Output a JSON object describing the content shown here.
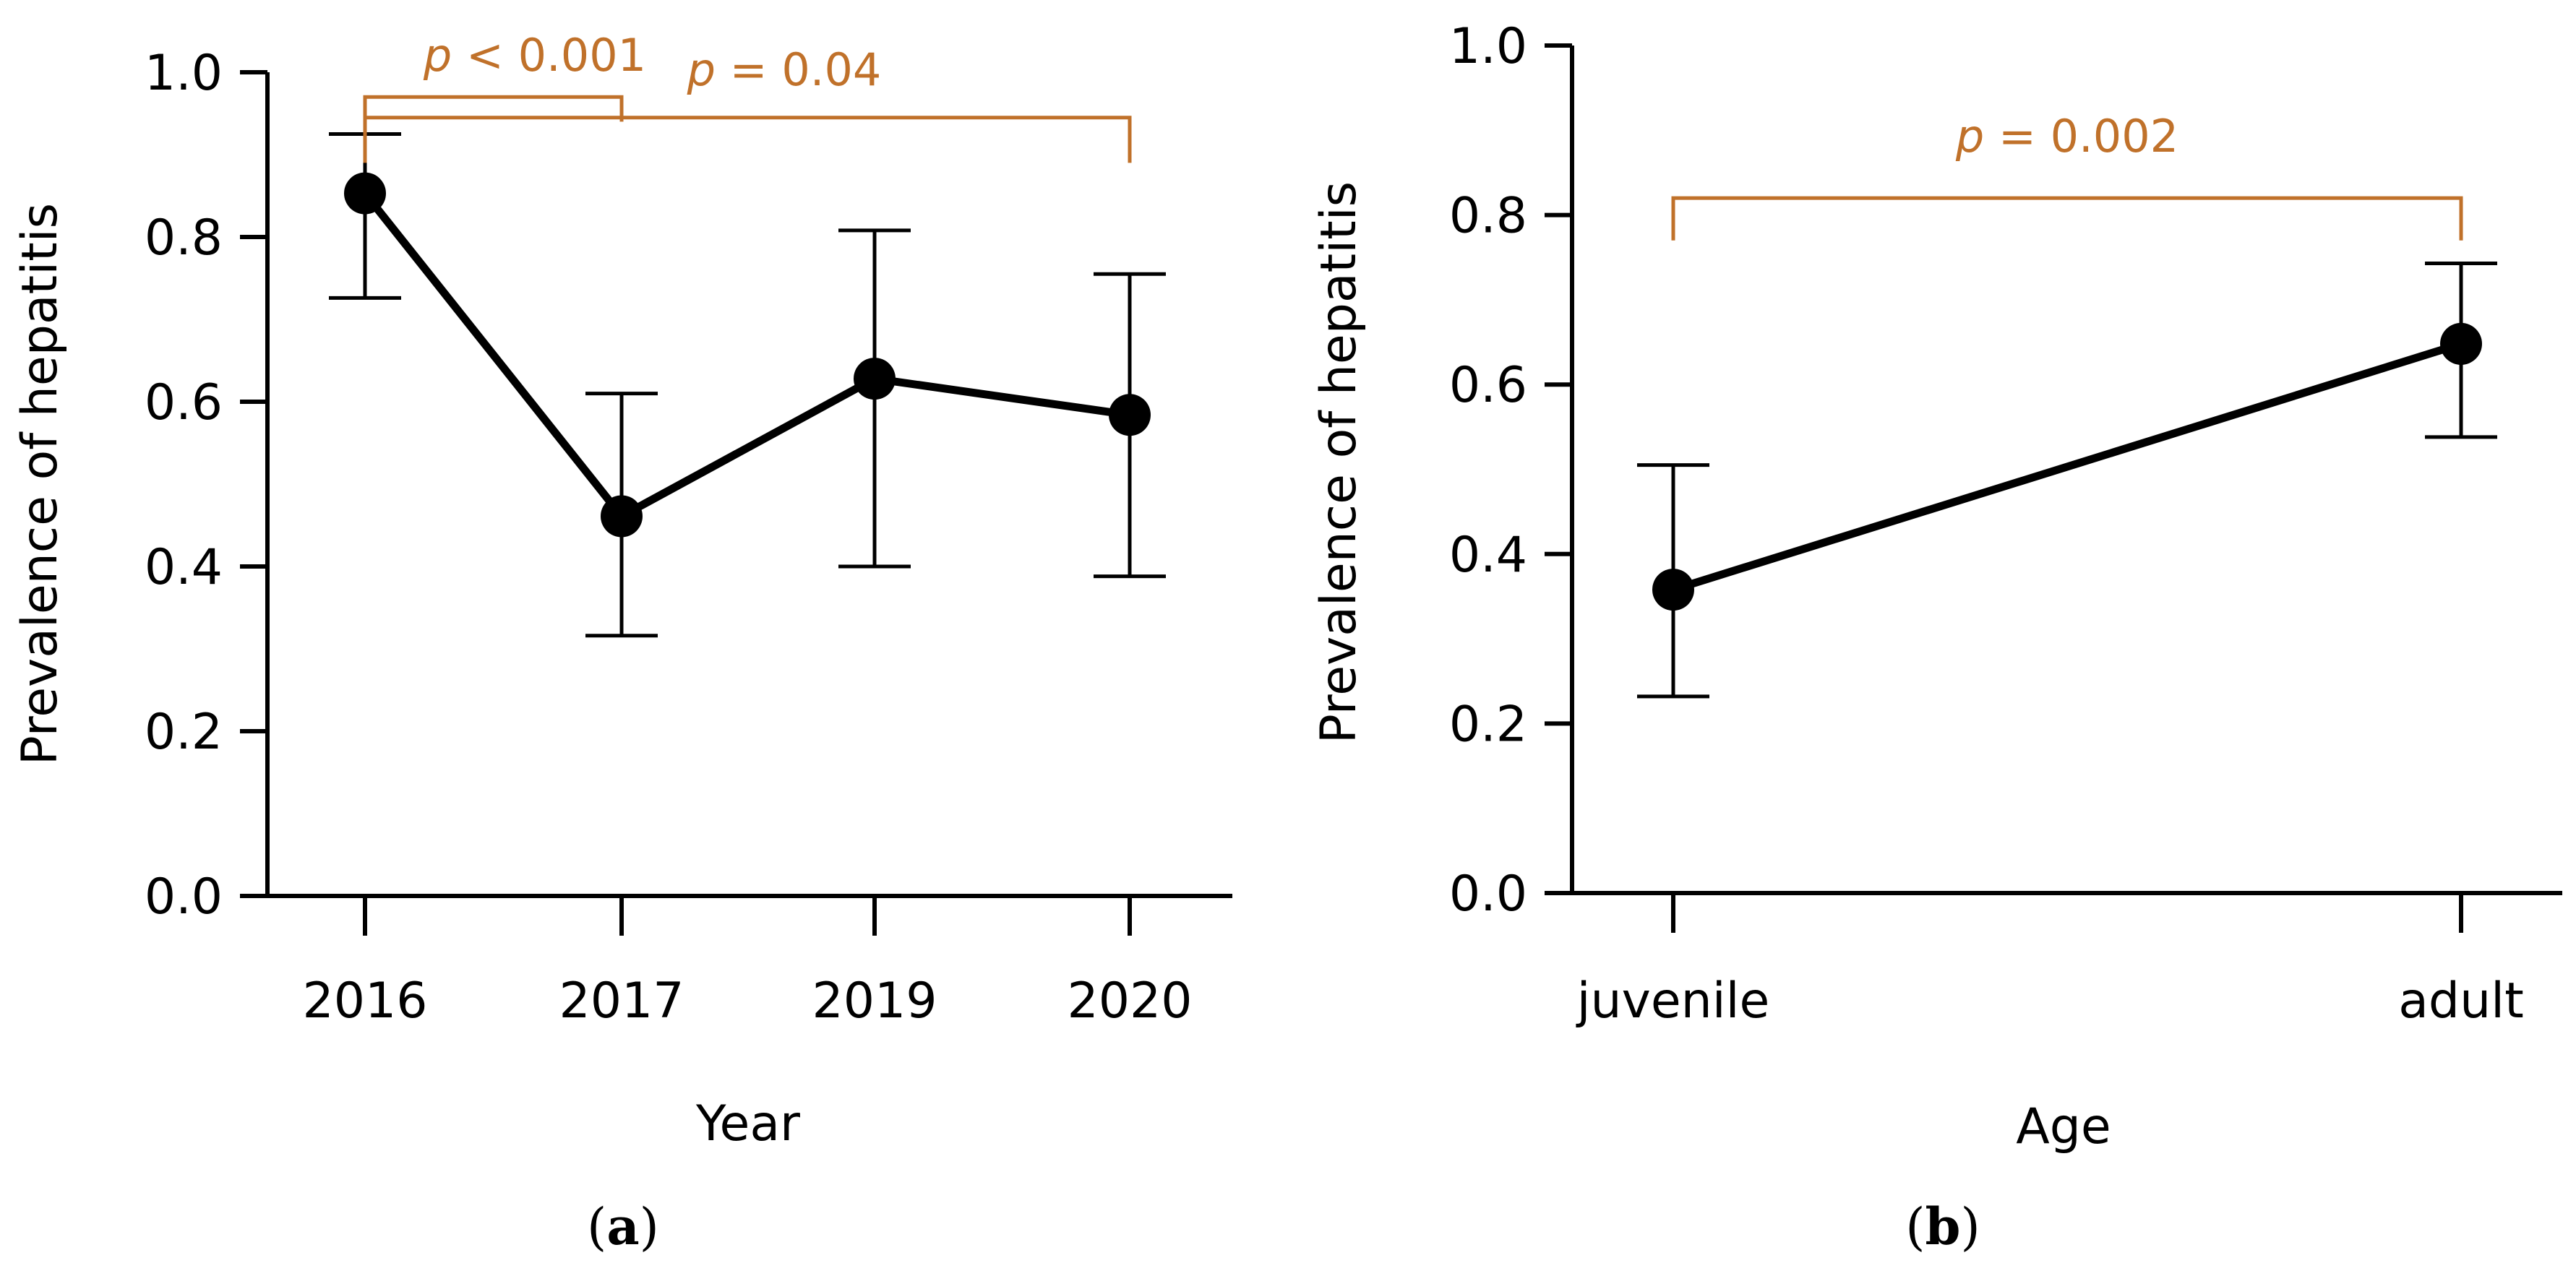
{
  "colors": {
    "ink": "#000000",
    "annotation": "#C0712A"
  },
  "chart_data": [
    {
      "panel": "a",
      "type": "line",
      "panel_label_open": "(",
      "panel_label_letter": "a",
      "panel_label_close": ")",
      "xlabel": "Year",
      "ylabel": "Prevalence of hepatitis",
      "categories": [
        "2016",
        "2017",
        "2019",
        "2020"
      ],
      "values": [
        0.853,
        0.461,
        0.628,
        0.584
      ],
      "ci_lower": [
        0.726,
        0.316,
        0.4,
        0.388
      ],
      "ci_upper": [
        0.925,
        0.61,
        0.808,
        0.755
      ],
      "ylim": [
        0.0,
        1.0
      ],
      "yticks": [
        "0.0",
        "0.2",
        "0.4",
        "0.6",
        "0.8",
        "1.0"
      ],
      "annotations": [
        {
          "from": "2016",
          "to": "2017",
          "level": 0.97,
          "drop": 0.94,
          "p_symbol": "p",
          "p_text": " < 0.001"
        },
        {
          "from": "2016",
          "to": "2020",
          "level": 0.945,
          "drop": 0.89,
          "p_symbol": "p",
          "p_text": " = 0.04"
        }
      ]
    },
    {
      "panel": "b",
      "type": "line",
      "panel_label_open": "(",
      "panel_label_letter": "b",
      "panel_label_close": ")",
      "xlabel": "Age",
      "ylabel": "Prevalence of hepatitis",
      "categories": [
        "juvenile",
        "adult"
      ],
      "values": [
        0.358,
        0.648
      ],
      "ci_lower": [
        0.232,
        0.538
      ],
      "ci_upper": [
        0.505,
        0.743
      ],
      "ylim": [
        0.0,
        1.0
      ],
      "yticks": [
        "0.0",
        "0.2",
        "0.4",
        "0.6",
        "0.8",
        "1.0"
      ],
      "annotations": [
        {
          "from": "juvenile",
          "to": "adult",
          "level": 0.82,
          "drop": 0.77,
          "p_symbol": "p",
          "p_text": " = 0.002"
        }
      ]
    }
  ]
}
